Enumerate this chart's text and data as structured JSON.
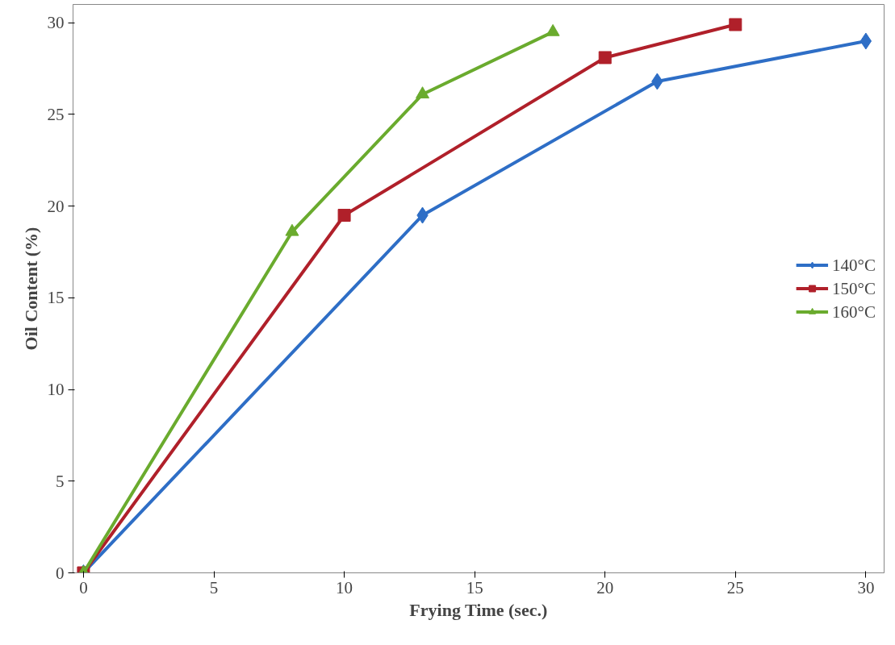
{
  "chart_data": {
    "type": "line",
    "xlabel": "Frying Time (sec.)",
    "ylabel": "Oil Content (%)",
    "xlim": [
      -0.4,
      30.7
    ],
    "ylim": [
      0,
      31
    ],
    "xticks": [
      0,
      5,
      10,
      15,
      20,
      25,
      30
    ],
    "yticks": [
      0,
      5,
      10,
      15,
      20,
      25,
      30
    ],
    "grid": false,
    "legend": "right",
    "line_style": "solid",
    "series": [
      {
        "name": "140°C",
        "color": "#2e6ec6",
        "marker": "diamond",
        "x": [
          0,
          13,
          22,
          30
        ],
        "values": [
          0,
          19.5,
          26.8,
          29
        ]
      },
      {
        "name": "150°C",
        "color": "#b0202a",
        "marker": "square",
        "x": [
          0,
          10,
          20,
          25
        ],
        "values": [
          0,
          19.5,
          28.1,
          29.9
        ]
      },
      {
        "name": "160°C",
        "color": "#6aab2e",
        "marker": "triangle",
        "x": [
          0,
          8,
          13,
          18
        ],
        "values": [
          0,
          18.6,
          26.1,
          29.5
        ]
      }
    ]
  }
}
